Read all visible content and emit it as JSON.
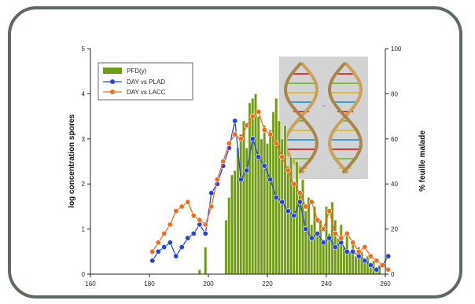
{
  "chart_data": {
    "type": "bar",
    "xlabel": "",
    "ylabel": "log concentration spores",
    "y2label": "% feuille malade",
    "xlim": [
      160,
      260
    ],
    "ylim": [
      0,
      5
    ],
    "y2lim": [
      0,
      100
    ],
    "xticks": [
      "160",
      "180",
      "200",
      "220",
      "240",
      "260"
    ],
    "yticks": [
      "0",
      "1",
      "2",
      "3",
      "4",
      "5"
    ],
    "y2ticks": [
      "0",
      "20",
      "40",
      "60",
      "80",
      "100"
    ],
    "legend_position": "top-left",
    "inset_image": "dna-double-helix-illustration",
    "bars": {
      "name": "PFD(y)",
      "color": "#6f9a16",
      "x": [
        197,
        199,
        206,
        207,
        208,
        209,
        210,
        211,
        212,
        213,
        214,
        215,
        216,
        217,
        218,
        219,
        220,
        221,
        222,
        223,
        224,
        225,
        226,
        227,
        228,
        229,
        230,
        231,
        232,
        233,
        234,
        235,
        236,
        237,
        238,
        239,
        240,
        241,
        242,
        243,
        244,
        245,
        246,
        247,
        248,
        249,
        250,
        251,
        252,
        253,
        254,
        255,
        256,
        257,
        258
      ],
      "values": [
        0.1,
        0.6,
        1.2,
        1.7,
        2.2,
        2.3,
        2.8,
        3.1,
        3.4,
        2.8,
        3.8,
        3.9,
        4.0,
        3.5,
        3.0,
        3.3,
        2.9,
        3.2,
        3.6,
        3.9,
        3.4,
        3.0,
        3.3,
        2.4,
        2.6,
        2.0,
        2.5,
        1.8,
        2.1,
        1.4,
        1.7,
        1.1,
        1.5,
        0.9,
        1.2,
        0.7,
        1.5,
        0.9,
        1.6,
        1.2,
        0.8,
        1.1,
        0.6,
        0.9,
        0.5,
        0.7,
        0.4,
        0.6,
        0.5,
        0.3,
        0.4,
        0.2,
        0.3,
        0.1,
        0.2
      ]
    },
    "series": [
      {
        "name": "DAY vs PLAD",
        "color": "#2545d8",
        "x": [
          181,
          183,
          185,
          187,
          189,
          191,
          193,
          195,
          197,
          199,
          201,
          203,
          205,
          207,
          209,
          211,
          213,
          215,
          217,
          219,
          221,
          223,
          225,
          227,
          229,
          231,
          233,
          235,
          237,
          239,
          241,
          243,
          245,
          247,
          249,
          251,
          253,
          255,
          257,
          259,
          261
        ],
        "values": [
          0.3,
          0.5,
          0.6,
          0.7,
          0.4,
          0.6,
          0.8,
          0.9,
          1.1,
          0.9,
          1.8,
          2.0,
          2.4,
          2.8,
          3.4,
          2.1,
          2.3,
          3.0,
          2.6,
          2.4,
          2.1,
          1.7,
          1.6,
          1.4,
          1.3,
          1.6,
          1.0,
          0.8,
          0.9,
          0.7,
          0.8,
          0.6,
          0.7,
          0.5,
          0.5,
          0.4,
          0.3,
          0.2,
          0.1,
          0.2,
          0.4
        ]
      },
      {
        "name": "DAY vs LACC",
        "color": "#f26a1c",
        "x": [
          181,
          183,
          185,
          187,
          189,
          191,
          193,
          195,
          197,
          199,
          201,
          203,
          205,
          207,
          209,
          211,
          213,
          215,
          217,
          219,
          221,
          223,
          225,
          227,
          229,
          231,
          233,
          235,
          237,
          239,
          241,
          243,
          245,
          247,
          249,
          251,
          253,
          255,
          257,
          259,
          261
        ],
        "values": [
          0.5,
          0.7,
          0.9,
          1.1,
          1.4,
          1.5,
          1.6,
          1.3,
          1.2,
          1.1,
          1.5,
          2.1,
          2.5,
          2.9,
          3.1,
          3.0,
          3.3,
          3.5,
          3.6,
          3.2,
          3.1,
          2.9,
          2.6,
          2.3,
          2.0,
          1.8,
          1.5,
          1.6,
          1.2,
          1.0,
          1.4,
          0.9,
          0.8,
          0.9,
          0.7,
          0.5,
          0.6,
          0.4,
          0.3,
          0.2,
          0.1
        ]
      }
    ]
  }
}
